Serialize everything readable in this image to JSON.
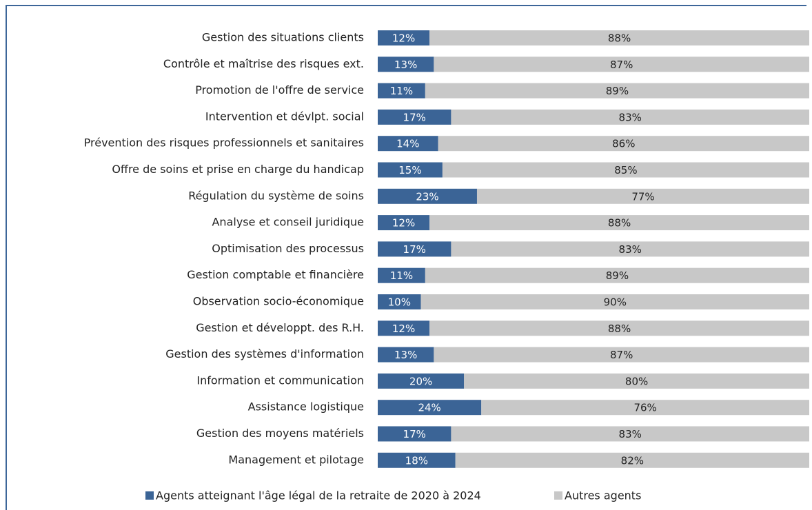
{
  "chart_data": {
    "type": "stacked-bar-horizontal",
    "categories": [
      "Gestion des situations clients",
      "Contrôle et maîtrise des risques ext.",
      "Promotion de l'offre de service",
      "Intervention et dévlpt. social",
      "Prévention des risques professionnels et sanitaires",
      "Offre de soins et prise en charge du handicap",
      "Régulation du système de soins",
      "Analyse et conseil juridique",
      "Optimisation des processus",
      "Gestion comptable et financière",
      "Observation socio-économique",
      "Gestion et développt. des R.H.",
      "Gestion des systèmes d'information",
      "Information et communication",
      "Assistance logistique",
      "Gestion des moyens matériels",
      "Management et pilotage"
    ],
    "series": [
      {
        "name": "Agents atteignant l'âge légal de la retraite de 2020 à 2024",
        "color": "#3b6496",
        "values": [
          12,
          13,
          11,
          17,
          14,
          15,
          23,
          12,
          17,
          11,
          10,
          12,
          13,
          20,
          24,
          17,
          18
        ],
        "value_labels": [
          "12%",
          "13%",
          "11%",
          "17%",
          "14%",
          "15%",
          "23%",
          "12%",
          "17%",
          "11%",
          "10%",
          "12%",
          "13%",
          "20%",
          "24%",
          "17%",
          "18%"
        ]
      },
      {
        "name": "Autres agents",
        "color": "#c8c8c8",
        "values": [
          88,
          87,
          89,
          83,
          86,
          85,
          77,
          88,
          83,
          89,
          90,
          88,
          87,
          80,
          76,
          83,
          82
        ],
        "value_labels": [
          "88%",
          "87%",
          "89%",
          "83%",
          "86%",
          "85%",
          "77%",
          "88%",
          "83%",
          "89%",
          "90%",
          "88%",
          "87%",
          "80%",
          "76%",
          "83%",
          "82%"
        ]
      }
    ],
    "xlim": [
      0,
      100
    ]
  }
}
